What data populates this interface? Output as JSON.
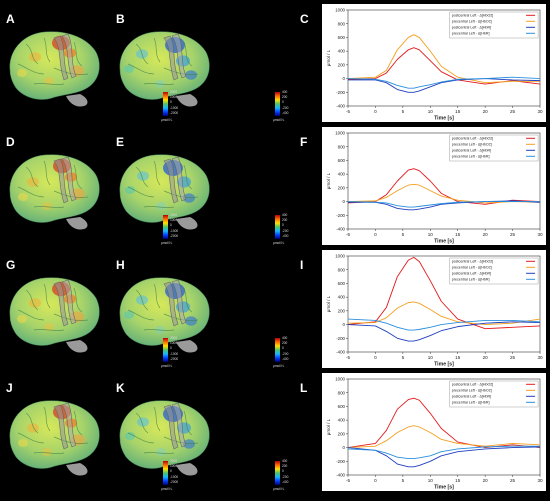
{
  "panels": [
    {
      "brains": [
        "A",
        "B"
      ],
      "chart_letter": "C",
      "cbar_left": [
        "2000",
        "1000",
        "0",
        "-1000",
        "-2000",
        "μmol/l·L"
      ],
      "cbar_right": [
        "400",
        "200",
        "0",
        "-200",
        "-400",
        "μmol/l·L"
      ],
      "ylim": [
        -400,
        1000
      ],
      "yticks": [
        -400,
        -200,
        0,
        200,
        400,
        600,
        800,
        1000
      ]
    },
    {
      "brains": [
        "D",
        "E"
      ],
      "chart_letter": "F",
      "cbar_left": [
        "2000",
        "1000",
        "0",
        "-1000",
        "-2000",
        "μmol/l·L"
      ],
      "cbar_right": [
        "400",
        "200",
        "0",
        "-200",
        "-400",
        "μmol/l·L"
      ],
      "ylim": [
        -400,
        1000
      ],
      "yticks": [
        -400,
        -200,
        0,
        200,
        400,
        600,
        800,
        1000
      ]
    },
    {
      "brains": [
        "G",
        "H"
      ],
      "chart_letter": "I",
      "cbar_left": [
        "2000",
        "1000",
        "0",
        "-1000",
        "-2000",
        "μmol/l·L"
      ],
      "cbar_right": [
        "400",
        "200",
        "0",
        "-200",
        "-400",
        "μmol/l·L"
      ],
      "ylim": [
        -400,
        1000
      ],
      "yticks": [
        -400,
        -200,
        0,
        200,
        400,
        600,
        800,
        1000
      ]
    },
    {
      "brains": [
        "J",
        "K"
      ],
      "chart_letter": "L",
      "cbar_left": [
        "2000",
        "1000",
        "0",
        "-1000",
        "-2000",
        "μmol/l·L"
      ],
      "cbar_right": [
        "400",
        "200",
        "0",
        "-200",
        "-400",
        "μmol/l·L"
      ],
      "ylim": [
        -400,
        1000
      ],
      "yticks": [
        -400,
        -200,
        0,
        200,
        400,
        600,
        800,
        1000
      ]
    }
  ],
  "chart_data": [
    {
      "type": "line",
      "x": [
        -5,
        0,
        2,
        4,
        6,
        7,
        8,
        10,
        12,
        15,
        20,
        25,
        30
      ],
      "xlabel": "Time [s]",
      "ylabel": "μmol / L",
      "xlim": [
        -5,
        30
      ],
      "ylim": [
        -400,
        1000
      ],
      "xticks": [
        -5,
        0,
        5,
        10,
        15,
        20,
        25,
        30
      ],
      "series": [
        {
          "name": "postcentral Left - Δ[HbO2]",
          "color": "#e31a1c",
          "values": [
            -10,
            0,
            80,
            280,
            420,
            450,
            420,
            260,
            100,
            -20,
            -80,
            -30,
            -80
          ]
        },
        {
          "name": "precentral Left - Δ[HbO2]",
          "color": "#f4a020",
          "values": [
            0,
            20,
            120,
            420,
            600,
            640,
            600,
            400,
            180,
            20,
            -60,
            -40,
            -40
          ]
        },
        {
          "name": "postcentral Left - Δ[HbR]",
          "color": "#1f3fbf",
          "values": [
            -20,
            -20,
            -60,
            -160,
            -200,
            -200,
            -180,
            -120,
            -60,
            -20,
            0,
            -20,
            -30
          ]
        },
        {
          "name": "precentral Left - Δ[HbR]",
          "color": "#2b8fdc",
          "values": [
            0,
            -10,
            -40,
            -100,
            -140,
            -140,
            -120,
            -90,
            -50,
            -10,
            0,
            20,
            0
          ]
        }
      ]
    },
    {
      "type": "line",
      "x": [
        -5,
        0,
        2,
        4,
        6,
        7,
        8,
        10,
        12,
        15,
        20,
        25,
        30
      ],
      "xlabel": "Time [s]",
      "ylabel": "μmol / L",
      "xlim": [
        -5,
        30
      ],
      "ylim": [
        -400,
        1000
      ],
      "xticks": [
        -5,
        0,
        5,
        10,
        15,
        20,
        25,
        30
      ],
      "series": [
        {
          "name": "postcentral Left - Δ[HbO2]",
          "color": "#e31a1c",
          "values": [
            -20,
            0,
            100,
            300,
            460,
            480,
            450,
            300,
            120,
            0,
            -40,
            20,
            0
          ]
        },
        {
          "name": "precentral Left - Δ[HbO2]",
          "color": "#f4a020",
          "values": [
            0,
            10,
            60,
            160,
            240,
            250,
            240,
            160,
            80,
            20,
            -20,
            0,
            -10
          ]
        },
        {
          "name": "postcentral Left - Δ[HbR]",
          "color": "#1f3fbf",
          "values": [
            -10,
            -10,
            -40,
            -100,
            -120,
            -120,
            -110,
            -80,
            -40,
            -20,
            0,
            10,
            -10
          ]
        },
        {
          "name": "precentral Left - Δ[HbR]",
          "color": "#2b8fdc",
          "values": [
            0,
            -10,
            -20,
            -60,
            -80,
            -80,
            -70,
            -50,
            -30,
            -10,
            0,
            0,
            0
          ]
        }
      ]
    },
    {
      "type": "line",
      "x": [
        -5,
        0,
        2,
        4,
        6,
        7,
        8,
        10,
        12,
        15,
        20,
        25,
        30
      ],
      "xlabel": "Time [s]",
      "ylabel": "μmol / L",
      "xlim": [
        -5,
        30
      ],
      "ylim": [
        -400,
        1000
      ],
      "xticks": [
        -5,
        0,
        5,
        10,
        15,
        20,
        25,
        30
      ],
      "series": [
        {
          "name": "postcentral Left - Δ[HbO2]",
          "color": "#e31a1c",
          "values": [
            0,
            40,
            250,
            700,
            940,
            980,
            920,
            640,
            340,
            80,
            -60,
            -40,
            -20
          ]
        },
        {
          "name": "precentral Left - Δ[HbO2]",
          "color": "#f4a020",
          "values": [
            20,
            30,
            100,
            240,
            320,
            330,
            310,
            220,
            120,
            40,
            0,
            20,
            80
          ]
        },
        {
          "name": "postcentral Left - Δ[HbR]",
          "color": "#1f3fbf",
          "values": [
            0,
            -20,
            -100,
            -200,
            -240,
            -240,
            -220,
            -160,
            -90,
            -30,
            20,
            40,
            30
          ]
        },
        {
          "name": "precentral Left - Δ[HbR]",
          "color": "#2b8fdc",
          "values": [
            80,
            60,
            20,
            -40,
            -80,
            -80,
            -70,
            -40,
            0,
            30,
            60,
            60,
            40
          ]
        }
      ]
    },
    {
      "type": "line",
      "x": [
        -5,
        0,
        2,
        4,
        6,
        7,
        8,
        10,
        12,
        15,
        20,
        25,
        30
      ],
      "xlabel": "Time [s]",
      "ylabel": "μmol / L",
      "xlim": [
        -5,
        30
      ],
      "ylim": [
        -400,
        1000
      ],
      "xticks": [
        -5,
        0,
        5,
        10,
        15,
        20,
        25,
        30
      ],
      "series": [
        {
          "name": "postcentral Left - Δ[HbO2]",
          "color": "#e31a1c",
          "values": [
            0,
            60,
            250,
            560,
            700,
            720,
            690,
            500,
            280,
            80,
            0,
            40,
            0
          ]
        },
        {
          "name": "precentral Left - Δ[HbO2]",
          "color": "#f4a020",
          "values": [
            0,
            20,
            100,
            220,
            300,
            320,
            300,
            220,
            120,
            60,
            20,
            60,
            40
          ]
        },
        {
          "name": "postcentral Left - Δ[HbR]",
          "color": "#1f3fbf",
          "values": [
            0,
            -40,
            -120,
            -240,
            -280,
            -280,
            -260,
            -200,
            -120,
            -60,
            -20,
            0,
            10
          ]
        },
        {
          "name": "precentral Left - Δ[HbR]",
          "color": "#2b8fdc",
          "values": [
            -20,
            -40,
            -80,
            -140,
            -160,
            -160,
            -150,
            -120,
            -60,
            -20,
            10,
            20,
            20
          ]
        }
      ]
    }
  ]
}
